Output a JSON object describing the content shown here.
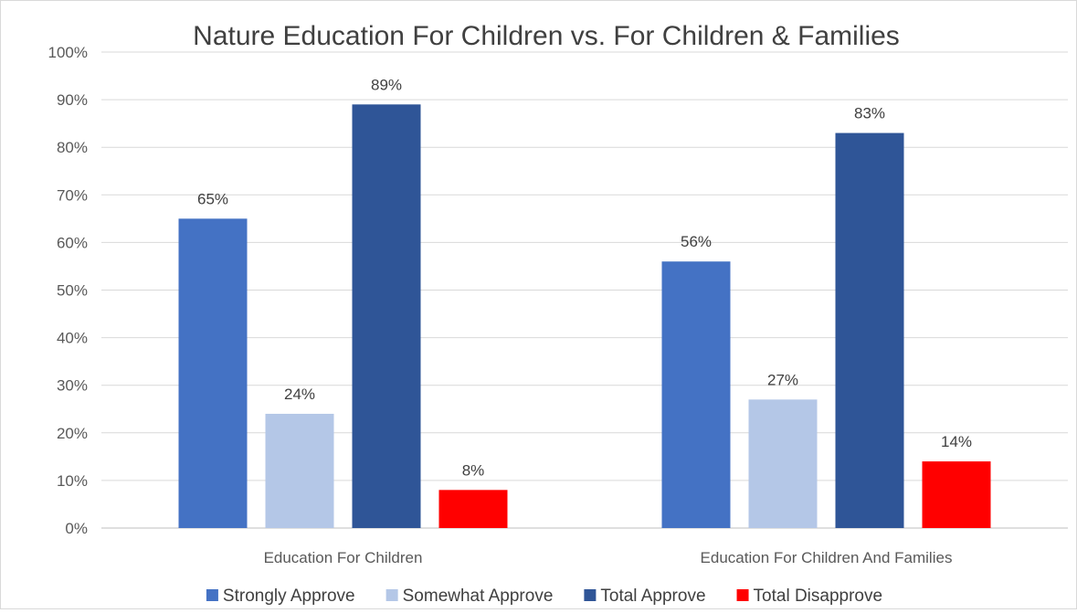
{
  "chart_data": {
    "type": "bar",
    "title": "Nature Education For Children vs. For Children & Families",
    "xlabel": "",
    "ylabel": "",
    "ylim": [
      0,
      100
    ],
    "ytick_step": 10,
    "ytick_format": "percent",
    "grid": true,
    "legend_position": "bottom",
    "categories": [
      "Education For Children",
      "Education For Children And Families"
    ],
    "series": [
      {
        "name": "Strongly Approve",
        "color": "#4472c4",
        "values": [
          65,
          56
        ],
        "labels": [
          "65%",
          "56%"
        ]
      },
      {
        "name": "Somewhat Approve",
        "color": "#b4c7e7",
        "values": [
          24,
          27
        ],
        "labels": [
          "24%",
          "27%"
        ]
      },
      {
        "name": "Total Approve",
        "color": "#2f5597",
        "values": [
          89,
          83
        ],
        "labels": [
          "89%",
          "83%"
        ]
      },
      {
        "name": "Total Disapprove",
        "color": "#ff0000",
        "values": [
          8,
          14
        ],
        "labels": [
          "8%",
          "14%"
        ]
      }
    ]
  }
}
